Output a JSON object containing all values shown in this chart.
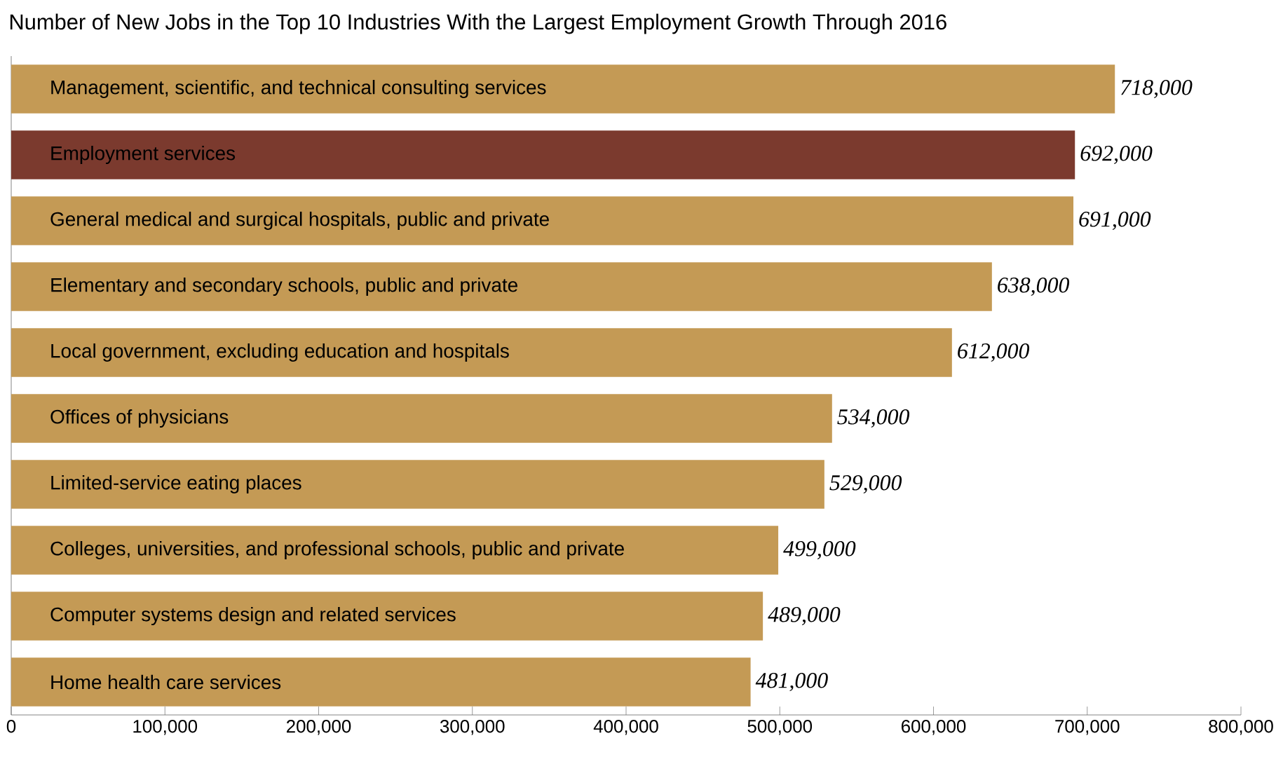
{
  "chart_data": {
    "type": "bar",
    "orientation": "horizontal",
    "title": "Number of New Jobs in the Top 10 Industries With the Largest Employment Growth Through 2016",
    "categories": [
      "Management, scientific, and technical consulting services",
      "Employment services",
      "General medical and surgical hospitals, public and private",
      "Elementary and secondary schools, public and private",
      "Local government, excluding education and hospitals",
      "Offices of physicians",
      "Limited-service eating places",
      "Colleges, universities, and professional schools, public and private",
      "Computer systems design and related services",
      "Home health care services"
    ],
    "values": [
      718000,
      692000,
      691000,
      638000,
      612000,
      534000,
      529000,
      499000,
      489000,
      481000
    ],
    "colors": [
      "#c49a55",
      "#7b3a2e",
      "#c49a55",
      "#c49a55",
      "#c49a55",
      "#c49a55",
      "#c49a55",
      "#c49a55",
      "#c49a55",
      "#c49a55"
    ],
    "value_labels": [
      "718,000",
      "692,000",
      "691,000",
      "638,000",
      "612,000",
      "534,000",
      "529,000",
      "499,000",
      "489,000",
      "481,000"
    ],
    "xlim": [
      0,
      800000
    ],
    "xticks": [
      0,
      {
        "value": 100000,
        "label": "100,000"
      },
      {
        "value": 200000,
        "label": "200,000"
      },
      {
        "value": 300000,
        "label": "300,000"
      },
      {
        "value": 400000,
        "label": "400,000"
      },
      {
        "value": 500000,
        "label": "500,000"
      },
      {
        "value": 600000,
        "label": "600,000"
      },
      {
        "value": 700000,
        "label": "700,000"
      },
      {
        "value": 800000,
        "label": "800,000"
      }
    ]
  }
}
